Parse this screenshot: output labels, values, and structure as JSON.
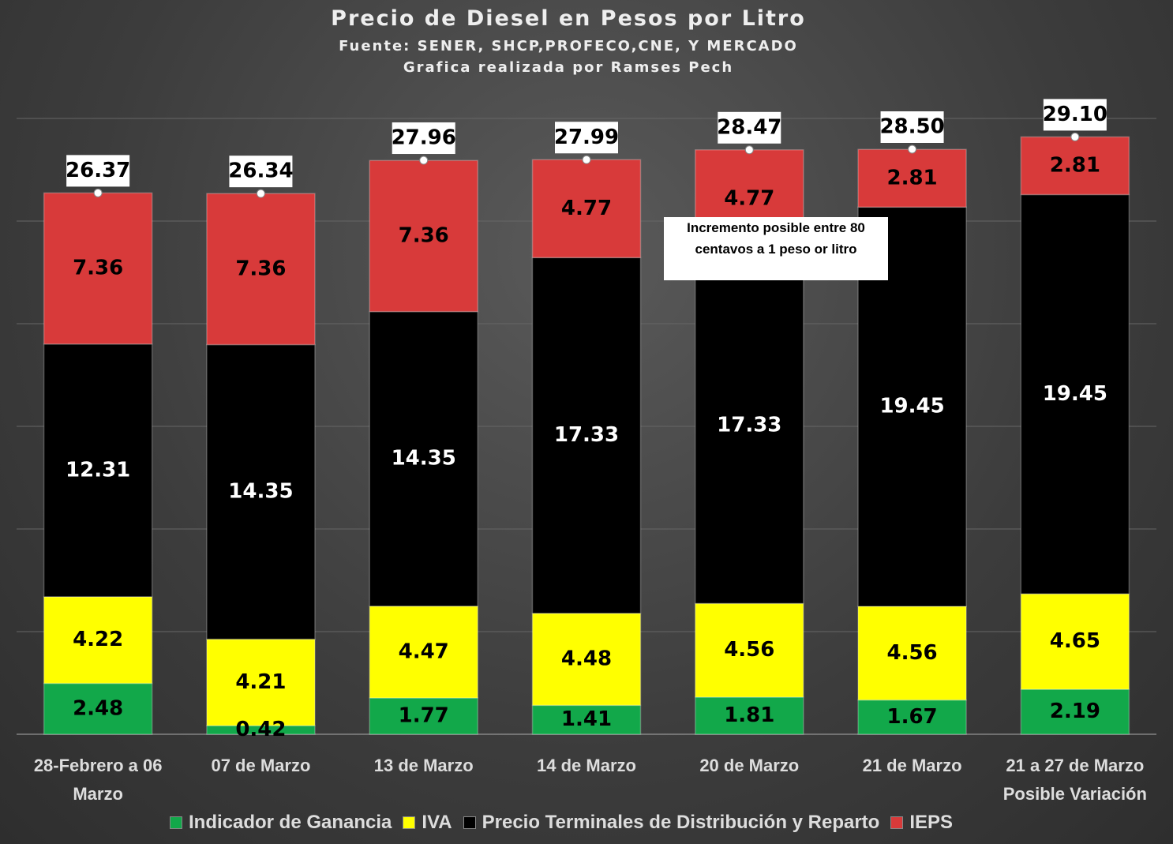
{
  "chart_data": {
    "type": "stacked_bar",
    "title": "Precio de Diesel en Pesos por Litro",
    "subtitle": [
      "Fuente: SENER, SHCP,PROFECO,CNE, Y MERCADO",
      "Grafica realizada por Ramses Pech"
    ],
    "categories": [
      "28-Febrero a 06 Marzo",
      "07 de Marzo",
      "13 de Marzo",
      "14 de Marzo",
      "20 de Marzo",
      "21 de Marzo",
      "21 a 27 de Marzo Posible Variación"
    ],
    "series": [
      {
        "name": "Indicador de Ganancia",
        "color": "#12a84a",
        "values": [
          2.48,
          0.42,
          1.77,
          1.41,
          1.81,
          1.67,
          2.19
        ]
      },
      {
        "name": "IVA",
        "color": "#ffff00",
        "values": [
          4.22,
          4.21,
          4.47,
          4.48,
          4.56,
          4.56,
          4.65
        ]
      },
      {
        "name": "Precio Terminales de Distribución y Reparto",
        "color": "#000000",
        "values": [
          12.31,
          14.35,
          14.35,
          17.33,
          17.33,
          19.45,
          19.45
        ]
      },
      {
        "name": "IEPS",
        "color": "#d83a3a",
        "values": [
          7.36,
          7.36,
          7.36,
          4.77,
          4.77,
          2.81,
          2.81
        ]
      }
    ],
    "totals": [
      26.37,
      26.34,
      27.96,
      27.99,
      28.47,
      28.5,
      29.1
    ],
    "total_labels": [
      "26.37",
      "26.34",
      "27.96",
      "27.99",
      "28.47",
      "28.50",
      "29.10"
    ],
    "annotation": "Incremento posible entre 80 centavos a 1 peso or litro",
    "ylim": [
      0,
      30
    ],
    "yticks": [
      0,
      5,
      10,
      15,
      20,
      25,
      30
    ],
    "grid": true,
    "legend": "bottom"
  }
}
